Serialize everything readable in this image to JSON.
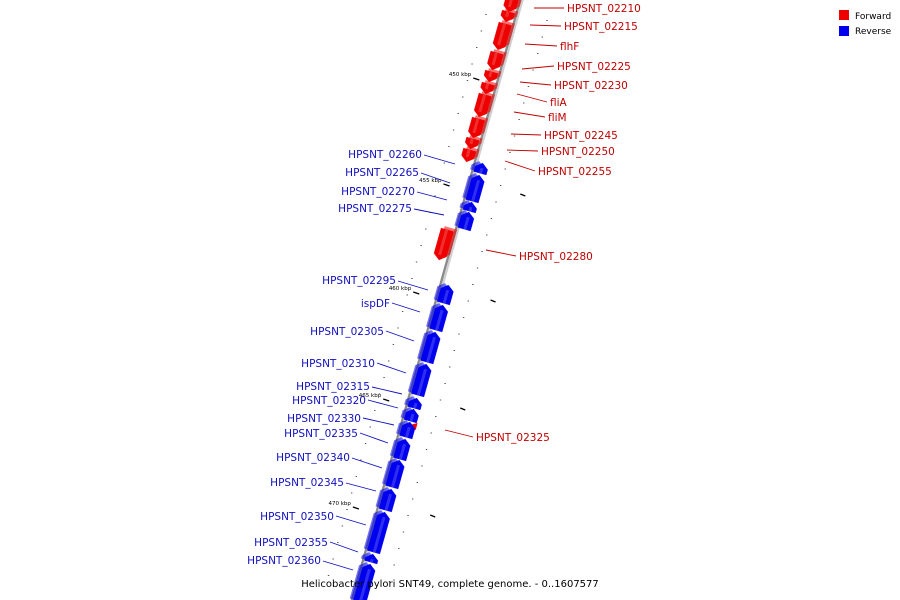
{
  "caption": "Helicobacter pylori SNT49, complete genome. - 0..1607577",
  "legend": [
    {
      "label": "Forward",
      "color": "#ee0000"
    },
    {
      "label": "Reverse",
      "color": "#0000ee"
    }
  ],
  "colors": {
    "forward": "#ee0000",
    "reverse": "#0000ee",
    "forward_label": "#c00000",
    "reverse_label": "#1010c0",
    "backbone": "#8a8a8a"
  },
  "ticks": [
    "450 kbp",
    "455 kbp",
    "460 kbp",
    "465 kbp",
    "470 kbp"
  ],
  "forward_genes": [
    "HPSNT_02210",
    "HPSNT_02215",
    "flhF",
    "HPSNT_02225",
    "HPSNT_02230",
    "fliA",
    "fliM",
    "HPSNT_02245",
    "HPSNT_02250",
    "HPSNT_02255",
    "HPSNT_02280",
    "HPSNT_02325"
  ],
  "reverse_genes": [
    "HPSNT_02260",
    "HPSNT_02265",
    "HPSNT_02270",
    "HPSNT_02275",
    "HPSNT_02295",
    "ispDF",
    "HPSNT_02305",
    "HPSNT_02310",
    "HPSNT_02315",
    "HPSNT_02320",
    "HPSNT_02330",
    "HPSNT_02335",
    "HPSNT_02340",
    "HPSNT_02345",
    "HPSNT_02350",
    "HPSNT_02355",
    "HPSNT_02360"
  ]
}
